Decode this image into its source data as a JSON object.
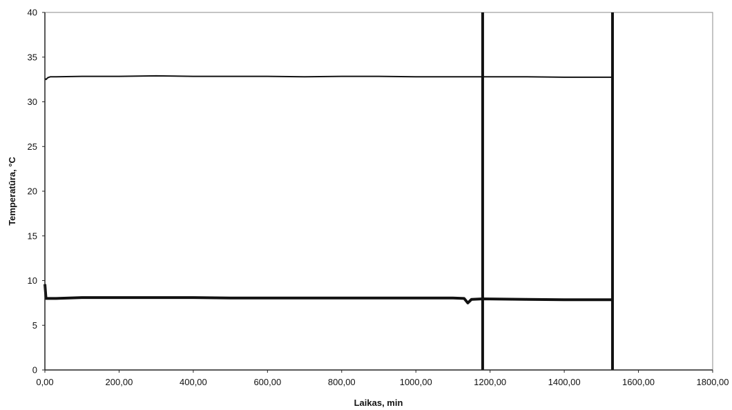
{
  "chart_data": {
    "type": "line",
    "title": "",
    "xlabel": "Laikas, min",
    "ylabel": "Temperatūra, °C",
    "xlim": [
      0,
      1800
    ],
    "ylim": [
      0,
      40
    ],
    "grid": false,
    "legend": "none",
    "x_ticks": [
      0,
      200,
      400,
      600,
      800,
      1000,
      1200,
      1400,
      1600,
      1800
    ],
    "x_tick_labels": [
      "0,00",
      "200,00",
      "400,00",
      "600,00",
      "800,00",
      "1000,00",
      "1200,00",
      "1400,00",
      "1600,00",
      "1800,00"
    ],
    "y_ticks": [
      0,
      5,
      10,
      15,
      20,
      25,
      30,
      35,
      40
    ],
    "y_tick_labels": [
      "0",
      "5",
      "10",
      "15",
      "20",
      "25",
      "30",
      "35",
      "40"
    ],
    "series": [
      {
        "color": "#111111",
        "x": [
          0,
          3,
          8,
          15,
          30,
          100,
          200,
          300,
          400,
          500,
          600,
          700,
          800,
          900,
          1000,
          1100,
          1180,
          1300,
          1400,
          1500,
          1530
        ],
        "values": [
          32.6,
          32.5,
          32.7,
          32.8,
          32.8,
          32.85,
          32.85,
          32.9,
          32.85,
          32.85,
          32.85,
          32.8,
          32.85,
          32.85,
          32.8,
          32.8,
          32.8,
          32.8,
          32.75,
          32.75,
          32.75
        ]
      },
      {
        "color": "#111111",
        "x": [
          0,
          3,
          8,
          15,
          30,
          100,
          200,
          300,
          400,
          500,
          600,
          700,
          800,
          900,
          1000,
          1100,
          1130,
          1140,
          1150,
          1180,
          1300,
          1400,
          1500,
          1530
        ],
        "values": [
          9.6,
          8.0,
          8.0,
          8.0,
          8.0,
          8.1,
          8.1,
          8.1,
          8.1,
          8.05,
          8.05,
          8.05,
          8.05,
          8.05,
          8.05,
          8.05,
          8.0,
          7.5,
          7.9,
          7.95,
          7.9,
          7.85,
          7.85,
          7.85
        ]
      }
    ],
    "vertical_lines": [
      1180,
      1530
    ],
    "colors": {
      "line": "#111111",
      "axis": "#222222",
      "frame": "#888888",
      "background": "#ffffff"
    }
  }
}
